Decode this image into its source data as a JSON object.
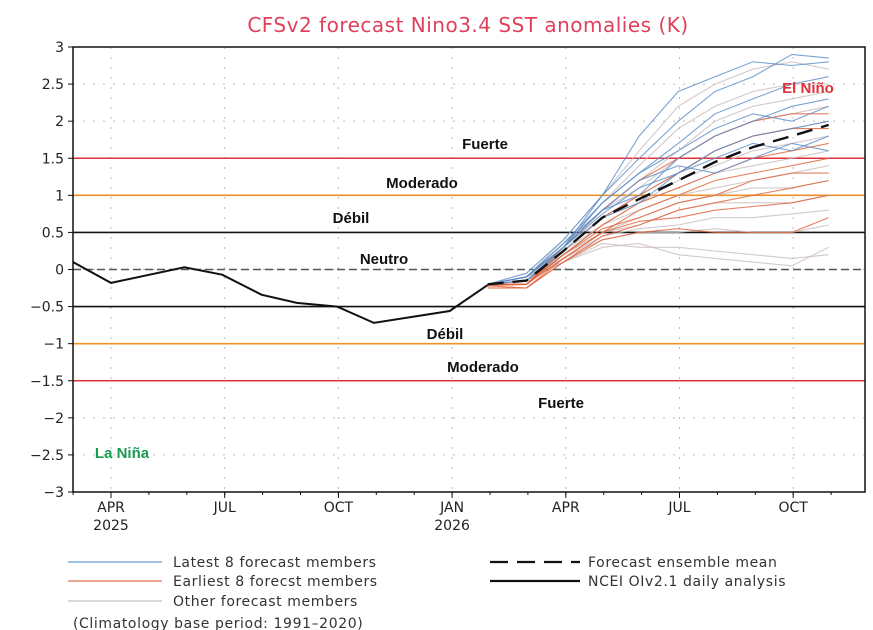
{
  "chart_data": {
    "type": "line",
    "title": "CFSv2 forecast Nino3.4 SST anomalies (K)",
    "ylim": [
      -3,
      3
    ],
    "yticks": [
      "3",
      "2.5",
      "2",
      "1.5",
      "1",
      "0.5",
      "0",
      "−0.5",
      "−1",
      "−1.5",
      "−2",
      "−2.5",
      "−3"
    ],
    "xlim": [
      "2025-03-01",
      "2026-12-01"
    ],
    "xticks": [
      {
        "label": "APR",
        "year": "2025",
        "date": "2025-04-01"
      },
      {
        "label": "JUL",
        "year": "",
        "date": "2025-07-01"
      },
      {
        "label": "OCT",
        "year": "",
        "date": "2025-10-01"
      },
      {
        "label": "JAN",
        "year": "2026",
        "date": "2026-01-01"
      },
      {
        "label": "APR",
        "year": "",
        "date": "2026-04-01"
      },
      {
        "label": "JUL",
        "year": "",
        "date": "2026-07-01"
      },
      {
        "label": "OCT",
        "year": "",
        "date": "2026-10-01"
      }
    ],
    "grid": true,
    "thresholds": [
      {
        "value": 1.5,
        "color": "#e0303a"
      },
      {
        "value": 1.0,
        "color": "#f0902a"
      },
      {
        "value": 0.5,
        "color": "#111111"
      },
      {
        "value": 0.0,
        "color": "#555555",
        "dashed": true
      },
      {
        "value": -0.5,
        "color": "#111111"
      },
      {
        "value": -1.0,
        "color": "#f0902a"
      },
      {
        "value": -1.5,
        "color": "#e0303a"
      }
    ],
    "band_labels": {
      "el_nino": "El Niño",
      "fuerte_pos": "Fuerte",
      "moderado_pos": "Moderado",
      "debil_pos": "Débil",
      "neutro": "Neutro",
      "debil_neg": "Débil",
      "moderado_neg": "Moderado",
      "fuerte_neg": "Fuerte",
      "la_nina": "La Niña"
    },
    "colors": {
      "el_nino": "#e0303a",
      "la_nina": "#1a9a50",
      "latest": "#4a7fc0",
      "earliest": "#e0502a",
      "other": "#c0b8b8"
    },
    "observed": {
      "name": "NCEI OIv2.1 daily analysis",
      "x": [
        "2025-03-01",
        "2025-04-01",
        "2025-05-30",
        "2025-06-29",
        "2025-07-31",
        "2025-08-29",
        "2025-09-30",
        "2025-10-30",
        "2025-12-30",
        "2026-01-30"
      ],
      "y": [
        0.1,
        -0.18,
        0.03,
        -0.07,
        -0.34,
        -0.45,
        -0.5,
        -0.72,
        -0.56,
        -0.21
      ]
    },
    "forecast_x": [
      "2026-01-30",
      "2026-02-28",
      "2026-03-30",
      "2026-04-30",
      "2026-05-30",
      "2026-06-30",
      "2026-07-30",
      "2026-08-30",
      "2026-09-30",
      "2026-10-30"
    ],
    "ensemble_mean": {
      "name": "Forecast ensemble mean",
      "y": [
        -0.2,
        -0.15,
        0.25,
        0.7,
        0.95,
        1.2,
        1.45,
        1.65,
        1.8,
        1.95
      ]
    },
    "series": [
      {
        "name": "Latest 8 forecast members",
        "group": "latest",
        "members": [
          [
            -0.2,
            -0.1,
            0.3,
            1.0,
            1.8,
            2.4,
            2.6,
            2.8,
            2.75,
            2.8
          ],
          [
            -0.2,
            -0.05,
            0.4,
            1.0,
            1.5,
            2.0,
            2.4,
            2.6,
            2.9,
            2.85
          ],
          [
            -0.2,
            -0.15,
            0.3,
            0.9,
            1.3,
            1.7,
            2.1,
            2.3,
            2.5,
            2.6
          ],
          [
            -0.2,
            -0.1,
            0.35,
            0.8,
            1.0,
            1.5,
            1.8,
            2.0,
            2.2,
            2.3
          ],
          [
            -0.2,
            -0.1,
            0.3,
            0.75,
            1.1,
            1.3,
            1.6,
            1.8,
            1.9,
            2.0
          ],
          [
            -0.2,
            -0.15,
            0.25,
            0.7,
            0.9,
            1.3,
            1.5,
            1.7,
            1.6,
            1.8
          ],
          [
            -0.2,
            -0.1,
            0.3,
            0.8,
            1.2,
            1.4,
            1.3,
            1.5,
            1.7,
            1.6
          ],
          [
            -0.2,
            -0.1,
            0.35,
            0.9,
            1.3,
            1.6,
            1.9,
            2.1,
            2.0,
            2.2
          ]
        ]
      },
      {
        "name": "Earliest 8 forecst members",
        "group": "earliest",
        "members": [
          [
            -0.2,
            -0.2,
            0.3,
            0.8,
            1.2,
            1.5,
            1.8,
            2.0,
            2.1,
            2.1
          ],
          [
            -0.22,
            -0.2,
            0.25,
            0.7,
            1.0,
            1.3,
            1.6,
            1.8,
            1.9,
            1.9
          ],
          [
            -0.2,
            -0.2,
            0.2,
            0.6,
            0.9,
            1.1,
            1.3,
            1.5,
            1.6,
            1.7
          ],
          [
            -0.25,
            -0.25,
            0.15,
            0.5,
            0.8,
            1.0,
            1.2,
            1.3,
            1.4,
            1.5
          ],
          [
            -0.2,
            -0.2,
            0.2,
            0.55,
            0.7,
            0.9,
            1.0,
            1.2,
            1.3,
            1.3
          ],
          [
            -0.22,
            -0.25,
            0.1,
            0.45,
            0.6,
            0.8,
            0.9,
            1.0,
            1.1,
            1.2
          ],
          [
            -0.2,
            -0.2,
            0.15,
            0.5,
            0.65,
            0.7,
            0.8,
            0.85,
            0.9,
            1.0
          ],
          [
            -0.25,
            -0.25,
            0.1,
            0.4,
            0.5,
            0.55,
            0.5,
            0.5,
            0.5,
            0.7
          ]
        ]
      },
      {
        "name": "Other forecast members",
        "group": "other",
        "members": [
          [
            -0.2,
            -0.1,
            0.4,
            1.0,
            1.6,
            2.2,
            2.5,
            2.7,
            2.8,
            2.7
          ],
          [
            -0.2,
            -0.1,
            0.3,
            0.9,
            1.4,
            1.9,
            2.2,
            2.4,
            2.5,
            2.5
          ],
          [
            -0.2,
            -0.15,
            0.3,
            0.8,
            1.2,
            1.6,
            2.0,
            2.2,
            2.3,
            2.4
          ],
          [
            -0.2,
            -0.1,
            0.3,
            0.8,
            1.1,
            1.5,
            1.8,
            2.0,
            2.1,
            2.2
          ],
          [
            -0.2,
            -0.15,
            0.25,
            0.7,
            1.0,
            1.3,
            1.6,
            1.8,
            1.9,
            2.0
          ],
          [
            -0.2,
            -0.1,
            0.3,
            0.7,
            0.9,
            1.2,
            1.4,
            1.6,
            1.7,
            1.8
          ],
          [
            -0.2,
            -0.15,
            0.2,
            0.6,
            0.9,
            1.1,
            1.3,
            1.4,
            1.5,
            1.6
          ],
          [
            -0.2,
            -0.1,
            0.25,
            0.6,
            0.8,
            1.0,
            1.1,
            1.2,
            1.3,
            1.4
          ],
          [
            -0.2,
            -0.15,
            0.2,
            0.5,
            0.7,
            0.9,
            1.0,
            1.1,
            1.1,
            1.2
          ],
          [
            -0.2,
            -0.1,
            0.2,
            0.5,
            0.6,
            0.8,
            0.9,
            0.9,
            0.9,
            1.0
          ],
          [
            -0.2,
            -0.15,
            0.15,
            0.45,
            0.55,
            0.6,
            0.7,
            0.7,
            0.75,
            0.8
          ],
          [
            -0.2,
            -0.1,
            0.15,
            0.4,
            0.5,
            0.5,
            0.55,
            0.5,
            0.5,
            0.6
          ],
          [
            -0.2,
            -0.15,
            0.1,
            0.35,
            0.3,
            0.3,
            0.25,
            0.2,
            0.15,
            0.2
          ],
          [
            -0.2,
            -0.1,
            0.1,
            0.3,
            0.35,
            0.2,
            0.15,
            0.1,
            0.05,
            0.3
          ]
        ]
      }
    ],
    "legend": {
      "latest": "Latest 8 forecast members",
      "earliest": "Earliest 8 forecst members",
      "other": "Other forecast members",
      "mean": "Forecast ensemble mean",
      "observed": "NCEI OIv2.1 daily analysis",
      "placement": "bottom"
    },
    "footnote": "(Climatology base period: 1991–2020)"
  }
}
